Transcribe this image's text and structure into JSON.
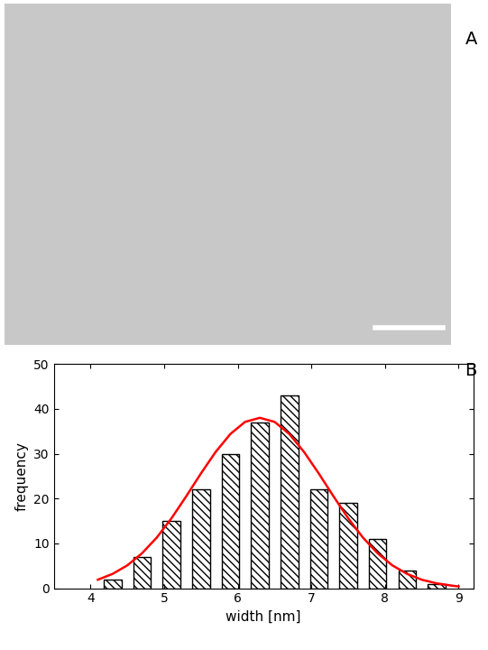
{
  "image": {
    "label": "A"
  },
  "chart_data": {
    "type": "histogram",
    "annotations": [
      "B"
    ],
    "x_label": "width [nm]",
    "y_label": "frequency",
    "bins": [
      4.1,
      4.5,
      4.9,
      5.3,
      5.7,
      6.1,
      6.5,
      6.9,
      7.3,
      7.7,
      8.1,
      8.5,
      8.9
    ],
    "values": [
      2,
      7,
      15,
      22,
      30,
      37,
      43,
      22,
      19,
      11,
      4,
      1
    ],
    "color": "#ffffff",
    "fit": {
      "type": "line",
      "color": "#ff0000",
      "x": [
        4.1,
        4.3,
        4.5,
        4.7,
        4.9,
        5.1,
        5.3,
        5.5,
        5.7,
        5.9,
        6.1,
        6.3,
        6.5,
        6.7,
        6.9,
        7.1,
        7.3,
        7.5,
        7.7,
        7.9,
        8.1,
        8.3,
        8.5,
        8.7,
        8.9,
        9.0
      ],
      "values": [
        1.9,
        3.2,
        5.1,
        7.8,
        11.3,
        15.6,
        20.5,
        25.6,
        30.4,
        34.4,
        37.1,
        38.0,
        37.1,
        34.4,
        30.4,
        25.6,
        20.5,
        15.6,
        11.3,
        7.8,
        5.1,
        3.2,
        1.9,
        1.1,
        0.6,
        0.4
      ]
    },
    "xlim": [
      3.5,
      9.2
    ],
    "xticks": [
      4,
      5,
      6,
      7,
      8,
      9
    ],
    "ylim": [
      0,
      50
    ],
    "yticks": [
      0,
      10,
      20,
      30,
      40,
      50
    ],
    "grid": false
  }
}
